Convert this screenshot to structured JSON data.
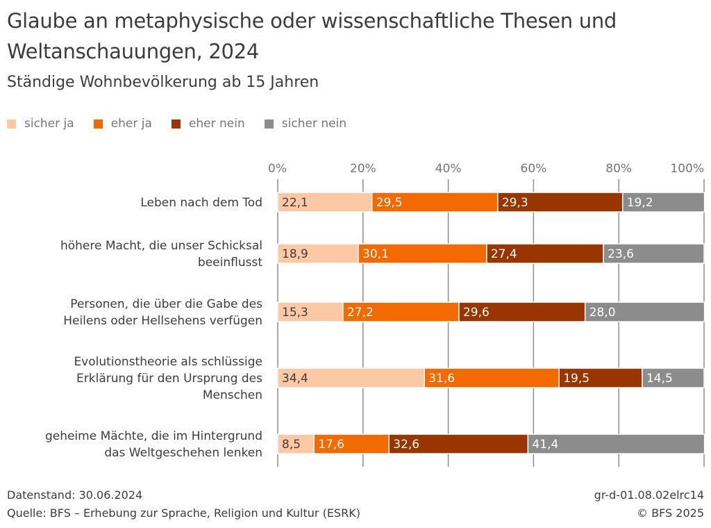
{
  "chart_data": {
    "type": "bar",
    "orientation": "horizontal",
    "stacked": true,
    "title": "Glaube an metaphysische oder wissenschaftliche Thesen und Weltanschauungen, 2024",
    "subtitle": "Ständige Wohnbevölkerung ab 15 Jahren",
    "xlabel": "",
    "ylabel": "",
    "xlim": [
      0,
      100
    ],
    "x_ticks": [
      "0%",
      "20%",
      "40%",
      "60%",
      "80%",
      "100%"
    ],
    "x_tick_values": [
      0,
      20,
      40,
      60,
      80,
      100
    ],
    "grid": true,
    "legend_position": "top-left",
    "categories": [
      [
        "Leben nach dem Tod"
      ],
      [
        "höhere Macht, die unser Schicksal",
        "beeinflusst"
      ],
      [
        "Personen, die über die Gabe des",
        "Heilens oder Hellsehens verfügen"
      ],
      [
        "Evolutionstheorie als schlüssige",
        "Erklärung für den Ursprung des",
        "Menschen"
      ],
      [
        "geheime Mächte, die im Hintergrund",
        "das Weltgeschehen lenken"
      ]
    ],
    "series": [
      {
        "name": "sicher ja",
        "color": "#fdc9a4",
        "label_color": "#3c3c3c",
        "values": [
          22.1,
          18.9,
          15.3,
          34.4,
          8.5
        ],
        "labels": [
          "22,1",
          "18,9",
          "15,3",
          "34,4",
          "8,5"
        ]
      },
      {
        "name": "eher ja",
        "color": "#f26a00",
        "label_color": "#ffffff",
        "values": [
          29.5,
          30.1,
          27.2,
          31.6,
          17.6
        ],
        "labels": [
          "29,5",
          "30,1",
          "27,2",
          "31,6",
          "17,6"
        ]
      },
      {
        "name": "eher nein",
        "color": "#993600",
        "label_color": "#ffffff",
        "values": [
          29.3,
          27.4,
          29.6,
          19.5,
          32.6
        ],
        "labels": [
          "29,3",
          "27,4",
          "29,6",
          "19,5",
          "32,6"
        ]
      },
      {
        "name": "sicher nein",
        "color": "#8c8c8c",
        "label_color": "#ffffff",
        "values": [
          19.2,
          23.6,
          28.0,
          14.5,
          41.4
        ],
        "labels": [
          "19,2",
          "23,6",
          "28,0",
          "14,5",
          "41,4"
        ]
      }
    ]
  },
  "footer": {
    "datenstand": "Datenstand: 30.06.2024",
    "quelle": "Quelle: BFS – Erhebung zur Sprache, Religion und Kultur (ESRK)",
    "code": "gr-d-01.08.02elrc14",
    "copyright": "© BFS 2025"
  }
}
